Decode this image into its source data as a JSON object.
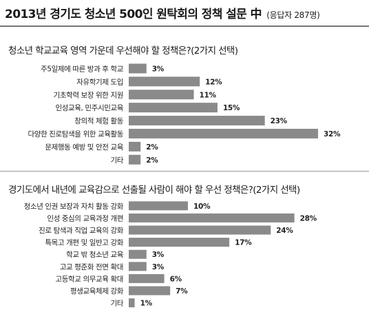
{
  "header": {
    "title": "2013년 경기도 청소년 500인 원탁회의 정책 설문 中",
    "subtitle": "(응답자 287명)"
  },
  "chart_data": [
    {
      "type": "bar",
      "orientation": "horizontal",
      "title": "청소년 학교교육 영역 가운데 우선해야 할 정책은?(2가지 선택)",
      "categories": [
        "주5일제에 따른 방과 후 학교",
        "자유학기제 도입",
        "기초학력 보장 위한 지원",
        "인성교육, 민주시민교육",
        "창의적 체험 활동",
        "다양한 진로탐색을 위한 교육활동",
        "문제행동 예방 및 안전 교육",
        "기타"
      ],
      "values": [
        3,
        12,
        11,
        15,
        23,
        32,
        2,
        2
      ],
      "value_labels": [
        "3%",
        "12%",
        "11%",
        "15%",
        "23%",
        "32%",
        "2%",
        "2%"
      ],
      "unit": "%",
      "xlim": [
        0,
        32
      ],
      "bar_color": "#8a8a8a",
      "grid": false
    },
    {
      "type": "bar",
      "orientation": "horizontal",
      "title": "경기도에서 내년에 교육감으로 선출될 사람이 해야 할 우선 정책은?(2가지 선택)",
      "categories": [
        "청소년 인권 보장과 자치 활동 강화",
        "인성 중심의 교육과정 개편",
        "진로 탐색과 직업 교육의 강화",
        "특목고 개편 및 일반고 강화",
        "학교 밖 청소년 교육",
        "고교 평준화 전면 확대",
        "고등학교 의무교육 확대",
        "평생교육체제 강화",
        "기타"
      ],
      "values": [
        10,
        28,
        24,
        17,
        3,
        3,
        6,
        7,
        1
      ],
      "value_labels": [
        "10%",
        "28%",
        "24%",
        "17%",
        "3%",
        "3%",
        "6%",
        "7%",
        "1%"
      ],
      "unit": "%",
      "xlim": [
        0,
        32
      ],
      "bar_color": "#8a8a8a",
      "grid": false
    }
  ]
}
